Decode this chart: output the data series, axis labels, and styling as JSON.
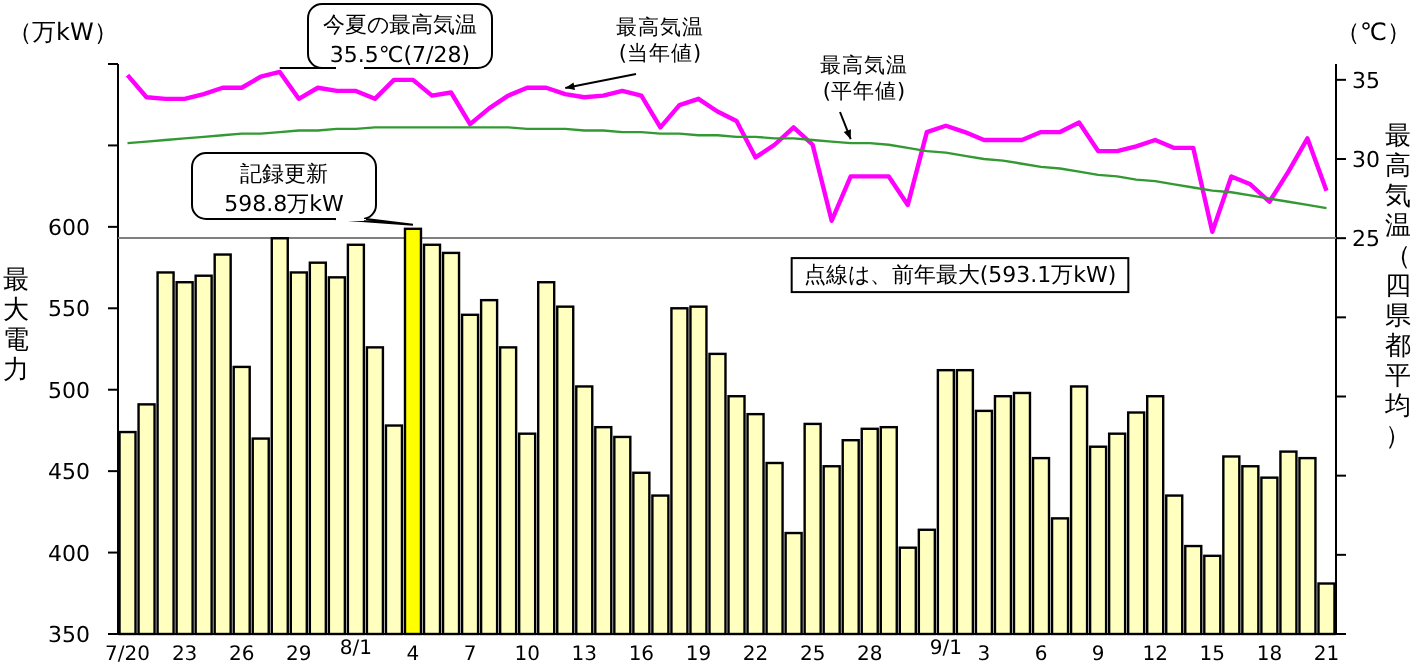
{
  "chart_data": {
    "type": "bar",
    "ylabel": "最大電力",
    "y2label": "最高気温（四県都平均）",
    "categories": [
      "7/20",
      null,
      null,
      "23",
      null,
      null,
      "26",
      null,
      null,
      "29",
      null,
      null,
      "8/1",
      null,
      null,
      "4",
      null,
      null,
      "7",
      null,
      null,
      "10",
      null,
      null,
      "13",
      null,
      null,
      "16",
      null,
      null,
      "19",
      null,
      null,
      "22",
      null,
      null,
      "25",
      null,
      null,
      "28",
      null,
      null,
      null,
      "9/1",
      null,
      "3",
      null,
      null,
      "6",
      null,
      null,
      "9",
      null,
      null,
      "12",
      null,
      null,
      "15",
      null,
      null,
      "18",
      null,
      null,
      "21"
    ],
    "series": [
      {
        "colors": [
          "#ffffc0",
          "#ffffc0",
          "#ffffc0",
          "#ffffc0",
          "#ffffc0",
          "#ffffc0",
          "#ffffc0",
          "#ffffc0",
          "#ffffc0",
          "#ffffc0",
          "#ffffc0",
          "#ffffc0",
          "#ffffc0",
          "#ffffc0",
          "#ffffc0",
          "#ffff00",
          "#ffffc0",
          "#ffffc0",
          "#ffffc0",
          "#ffffc0",
          "#ffffc0",
          "#ffffc0",
          "#ffffc0",
          "#ffffc0",
          "#ffffc0",
          "#ffffc0",
          "#ffffc0",
          "#ffffc0",
          "#ffffc0",
          "#ffffc0",
          "#ffffc0",
          "#ffffc0",
          "#ffffc0",
          "#ffffc0",
          "#ffffc0",
          "#ffffc0",
          "#ffffc0",
          "#ffffc0",
          "#ffffc0",
          "#ffffc0",
          "#ffffc0",
          "#ffffc0",
          "#ffffc0",
          "#ffffc0",
          "#ffffc0",
          "#ffffc0",
          "#ffffc0",
          "#ffffc0",
          "#ffffc0",
          "#ffffc0",
          "#ffffc0",
          "#ffffc0",
          "#ffffc0",
          "#ffffc0",
          "#ffffc0",
          "#ffffc0",
          "#ffffc0",
          "#ffffc0",
          "#ffffc0",
          "#ffffc0",
          "#ffffc0",
          "#ffffc0",
          "#ffffc0",
          "#ffffc0"
        ],
        "values": [
          474,
          491,
          572,
          566,
          570,
          583,
          514,
          470,
          593,
          572,
          578,
          569,
          589,
          526,
          478,
          598.8,
          589,
          584,
          546,
          555,
          526,
          473,
          566,
          551,
          502,
          477,
          471,
          449,
          435,
          550,
          551,
          522,
          496,
          485,
          455,
          412,
          479,
          453,
          469,
          476,
          477,
          403,
          414,
          512,
          512,
          487,
          496,
          498,
          458,
          421,
          502,
          465,
          473,
          486,
          496,
          435,
          404,
          398,
          459,
          453,
          446,
          462,
          458,
          381
        ]
      },
      {
        "type": "line",
        "axis": "y2",
        "color": "#ff00ff",
        "values": [
          35.3,
          33.9,
          33.8,
          33.8,
          34.1,
          34.5,
          34.5,
          35.2,
          35.5,
          33.8,
          34.5,
          34.3,
          34.3,
          33.8,
          35.0,
          35.0,
          34.0,
          34.2,
          32.2,
          33.2,
          34.0,
          34.5,
          34.5,
          34.1,
          33.9,
          34.0,
          34.3,
          34.0,
          32.0,
          33.4,
          33.8,
          33.0,
          32.4,
          30.1,
          30.9,
          32.0,
          30.9,
          26.1,
          28.9,
          28.9,
          28.9,
          27.1,
          31.7,
          32.1,
          31.7,
          31.2,
          31.2,
          31.2,
          31.7,
          31.7,
          32.3,
          30.5,
          30.5,
          30.8,
          31.2,
          30.7,
          30.7,
          25.4,
          28.9,
          28.4,
          27.3,
          29.2,
          31.3,
          28.0
        ]
      },
      {
        "type": "line",
        "axis": "y2",
        "color": "#339933",
        "values": [
          31.0,
          31.1,
          31.2,
          31.3,
          31.4,
          31.5,
          31.6,
          31.6,
          31.7,
          31.8,
          31.8,
          31.9,
          31.9,
          32.0,
          32.0,
          32.0,
          32.0,
          32.0,
          32.0,
          32.0,
          32.0,
          31.9,
          31.9,
          31.9,
          31.8,
          31.8,
          31.7,
          31.7,
          31.6,
          31.6,
          31.5,
          31.5,
          31.4,
          31.4,
          31.3,
          31.3,
          31.2,
          31.1,
          31.0,
          31.0,
          30.9,
          30.7,
          30.5,
          30.4,
          30.2,
          30.0,
          29.9,
          29.7,
          29.5,
          29.4,
          29.2,
          29.0,
          28.9,
          28.7,
          28.6,
          28.4,
          28.2,
          28.0,
          27.9,
          27.7,
          27.5,
          27.3,
          27.1,
          26.9
        ]
      }
    ],
    "ylim": [
      350,
      700
    ],
    "yticks": [
      350,
      400,
      450,
      500,
      550,
      600,
      {
        "value": 650,
        "label": null
      },
      {
        "value": 700,
        "label": null
      }
    ],
    "y2lim": [
      0,
      36
    ],
    "y2ticks": [
      {
        "value": 0,
        "label": null
      },
      {
        "value": 5,
        "label": null
      },
      {
        "value": 10,
        "label": null
      },
      {
        "value": 15,
        "label": null
      },
      {
        "value": 20,
        "label": null
      },
      25,
      30,
      35
    ],
    "ref_lines": [
      {
        "axis": "y",
        "value": 593.1,
        "label": "点線は、前年最大(593.1万kW)",
        "color": "#808080"
      }
    ],
    "annotations": [
      "（万kW）",
      "（℃）",
      "今夏の最高気温\n35.5℃(7/28)",
      "記録更新\n598.8万kW",
      "最高気温\n(当年値)",
      "最高気温\n(平年値)"
    ]
  }
}
